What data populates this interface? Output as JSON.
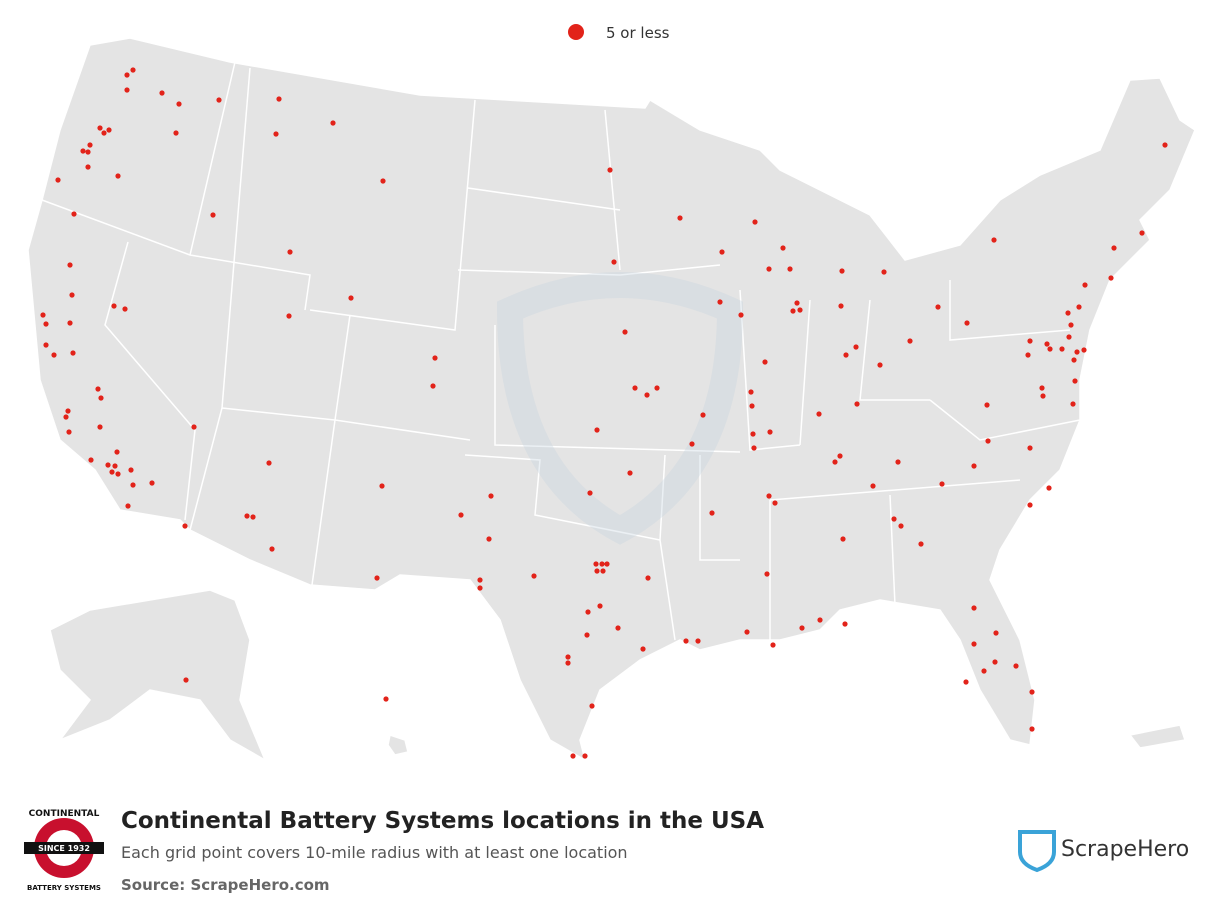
{
  "legend": {
    "label": "5 or less"
  },
  "title": "Continental Battery Systems locations in the USA",
  "subtitle": "Each grid point covers 10-mile radius with at least one location",
  "source": "Source: ScrapeHero.com",
  "logo": {
    "top": "CONTINENTAL",
    "band": "SINCE 1932",
    "bottom": "BATTERY SYSTEMS"
  },
  "brand": "ScrapeHero"
}
